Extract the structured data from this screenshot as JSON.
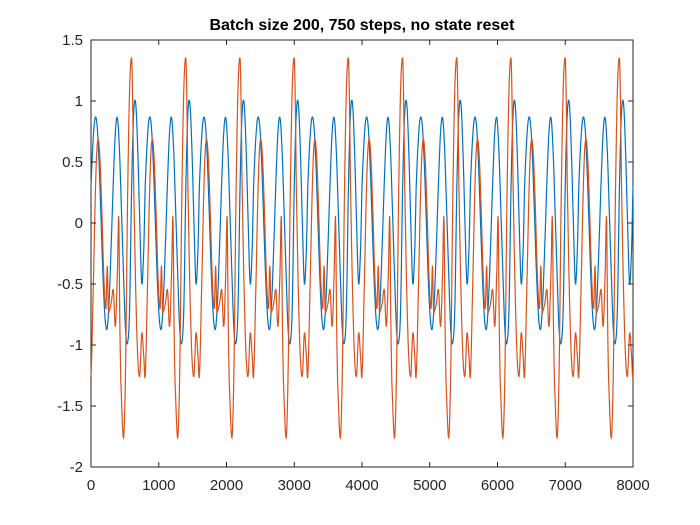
{
  "chart_data": {
    "type": "line",
    "title": "Batch size 200, 750 steps, no state reset",
    "xlabel": "",
    "ylabel": "",
    "xlim": [
      0,
      8000
    ],
    "ylim": [
      -2,
      1.5
    ],
    "xticks": [
      0,
      1000,
      2000,
      3000,
      4000,
      5000,
      6000,
      7000,
      8000
    ],
    "xtick_labels": [
      "0",
      "1000",
      "2000",
      "3000",
      "4000",
      "5000",
      "6000",
      "7000",
      "8000"
    ],
    "yticks": [
      -2,
      -1.5,
      -1,
      -0.5,
      0,
      0.5,
      1,
      1.5
    ],
    "ytick_labels": [
      "-2",
      "-1.5",
      "-1",
      "-0.5",
      "0",
      "0.5",
      "1",
      "1.5"
    ],
    "grid": false,
    "period": 800,
    "series": [
      {
        "color": "#0072BD",
        "x": [
          0,
          30,
          60,
          90,
          120,
          150,
          180,
          210,
          240,
          270,
          300,
          330,
          360,
          390,
          420,
          450,
          480,
          510,
          540,
          570,
          600,
          630,
          660,
          690,
          720,
          750,
          780,
          800
        ],
        "y": [
          0.3,
          0.67,
          0.86,
          0.8,
          0.48,
          0.0,
          -0.48,
          -0.8,
          -0.86,
          -0.6,
          -0.15,
          0.35,
          0.75,
          0.86,
          0.6,
          0.1,
          -0.42,
          -0.88,
          -0.98,
          -0.7,
          0.3,
          0.9,
          0.98,
          0.6,
          0.0,
          -0.5,
          -0.2,
          0.3
        ]
      },
      {
        "color": "#D95319",
        "x": [
          0,
          30,
          70,
          100,
          130,
          160,
          190,
          220,
          240,
          255,
          270,
          300,
          330,
          360,
          390,
          410,
          425,
          440,
          480,
          510,
          540,
          570,
          600,
          615,
          630,
          660,
          690,
          720,
          750,
          780,
          800
        ],
        "y": [
          -1.25,
          -0.6,
          0.35,
          0.68,
          0.55,
          0.1,
          -0.45,
          -0.7,
          -0.35,
          -0.7,
          -0.72,
          -0.65,
          -0.55,
          -0.85,
          -0.4,
          0.05,
          -0.8,
          -1.3,
          -1.76,
          -1.2,
          0.2,
          1.1,
          1.35,
          1.0,
          0.3,
          -0.55,
          -1.1,
          -1.25,
          -0.9,
          -1.1,
          -1.25
        ]
      }
    ]
  }
}
